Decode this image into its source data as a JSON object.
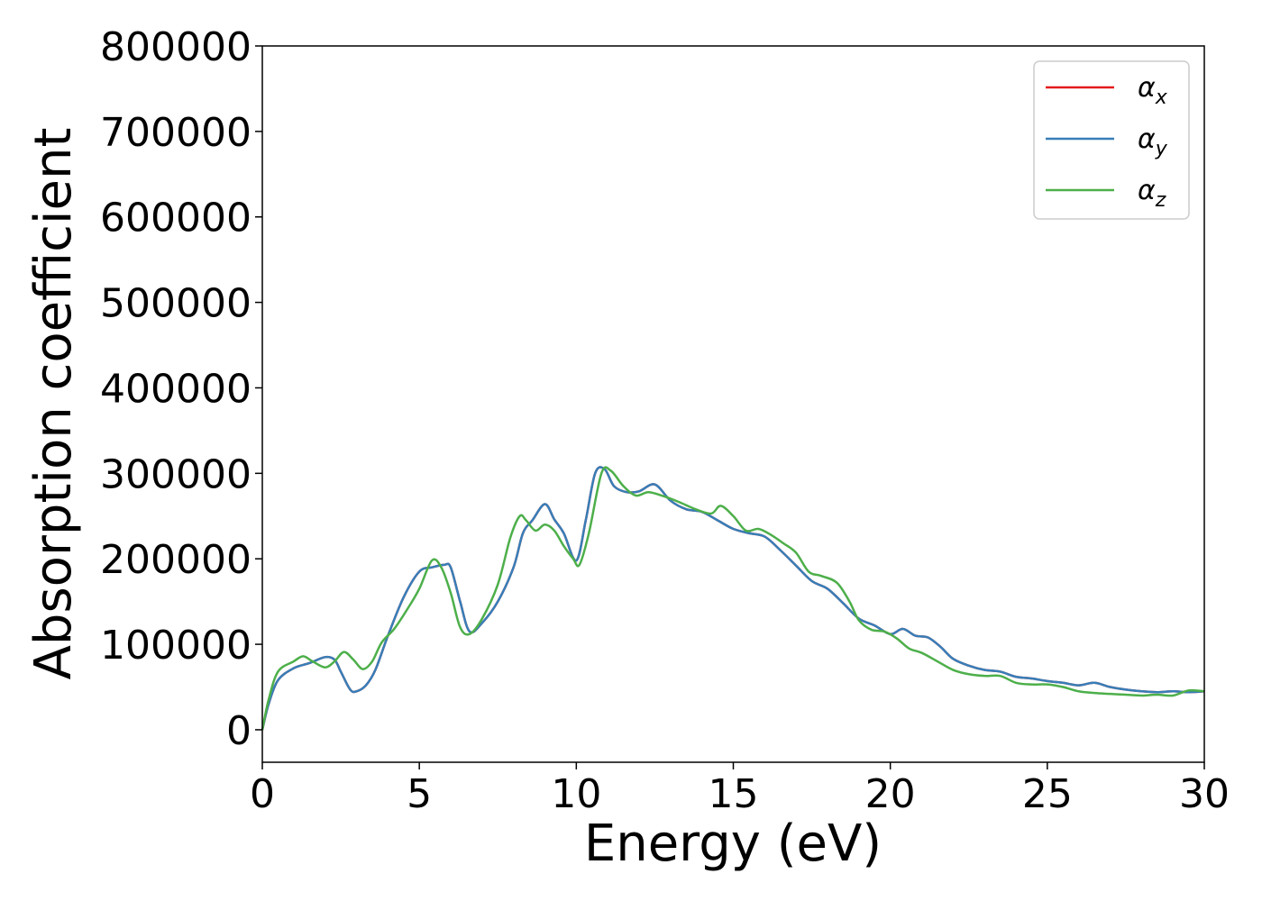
{
  "chart_data": {
    "type": "line",
    "title": "",
    "xlabel": "Energy (eV)",
    "ylabel": "Absorption coefficient",
    "xlim": [
      0,
      30
    ],
    "ylim": [
      -38000,
      800000
    ],
    "xticks": [
      0,
      5,
      10,
      15,
      20,
      25,
      30
    ],
    "yticks": [
      0,
      100000,
      200000,
      300000,
      400000,
      500000,
      600000,
      700000,
      800000
    ],
    "xtick_labels": [
      "0",
      "5",
      "10",
      "15",
      "20",
      "25",
      "30"
    ],
    "ytick_labels": [
      "0",
      "100000",
      "200000",
      "300000",
      "400000",
      "500000",
      "600000",
      "700000",
      "800000"
    ],
    "grid": false,
    "legend_position": "top-right",
    "series": [
      {
        "name": "α",
        "sub": "x",
        "color": "#e41a1c",
        "x": [
          0,
          0.2,
          0.5,
          1.0,
          1.5,
          2.0,
          2.3,
          2.5,
          2.8,
          3.0,
          3.3,
          3.6,
          4.0,
          4.5,
          5.0,
          5.4,
          5.8,
          6.0,
          6.3,
          6.6,
          7.0,
          7.5,
          8.0,
          8.3,
          8.6,
          9.0,
          9.3,
          9.6,
          10.0,
          10.3,
          10.6,
          10.9,
          11.2,
          11.6,
          12.0,
          12.5,
          13.0,
          13.5,
          14.0,
          14.5,
          15.0,
          15.5,
          16.0,
          16.5,
          17.0,
          17.5,
          18.0,
          18.5,
          19.0,
          19.5,
          20.0,
          20.4,
          20.8,
          21.2,
          21.6,
          22.0,
          22.5,
          23.0,
          23.5,
          24.0,
          24.5,
          25.0,
          25.5,
          26.0,
          26.5,
          27.0,
          27.5,
          28.0,
          28.5,
          29.0,
          29.5,
          30.0
        ],
        "y": [
          0,
          30000,
          58000,
          72000,
          78000,
          85000,
          82000,
          68000,
          47000,
          45000,
          52000,
          70000,
          110000,
          155000,
          185000,
          190000,
          193000,
          190000,
          150000,
          115000,
          125000,
          150000,
          190000,
          230000,
          245000,
          264000,
          246000,
          230000,
          198000,
          245000,
          300000,
          305000,
          285000,
          278000,
          279000,
          287000,
          268000,
          258000,
          255000,
          245000,
          235000,
          230000,
          226000,
          210000,
          192000,
          174000,
          165000,
          148000,
          130000,
          122000,
          112000,
          118000,
          110000,
          108000,
          97000,
          83000,
          75000,
          70000,
          68000,
          62000,
          60000,
          57000,
          55000,
          52000,
          55000,
          50000,
          47000,
          45000,
          44000,
          45000,
          44000,
          45000
        ]
      },
      {
        "name": "α",
        "sub": "y",
        "color": "#377eb8",
        "x": [
          0,
          0.2,
          0.5,
          1.0,
          1.5,
          2.0,
          2.3,
          2.5,
          2.8,
          3.0,
          3.3,
          3.6,
          4.0,
          4.5,
          5.0,
          5.4,
          5.8,
          6.0,
          6.3,
          6.6,
          7.0,
          7.5,
          8.0,
          8.3,
          8.6,
          9.0,
          9.3,
          9.6,
          10.0,
          10.3,
          10.6,
          10.9,
          11.2,
          11.6,
          12.0,
          12.5,
          13.0,
          13.5,
          14.0,
          14.5,
          15.0,
          15.5,
          16.0,
          16.5,
          17.0,
          17.5,
          18.0,
          18.5,
          19.0,
          19.5,
          20.0,
          20.4,
          20.8,
          21.2,
          21.6,
          22.0,
          22.5,
          23.0,
          23.5,
          24.0,
          24.5,
          25.0,
          25.5,
          26.0,
          26.5,
          27.0,
          27.5,
          28.0,
          28.5,
          29.0,
          29.5,
          30.0
        ],
        "y": [
          0,
          30000,
          58000,
          72000,
          78000,
          85000,
          82000,
          68000,
          47000,
          45000,
          52000,
          70000,
          110000,
          155000,
          185000,
          190000,
          193000,
          190000,
          150000,
          115000,
          125000,
          150000,
          190000,
          230000,
          245000,
          264000,
          246000,
          230000,
          198000,
          245000,
          300000,
          305000,
          285000,
          278000,
          279000,
          287000,
          268000,
          258000,
          255000,
          245000,
          235000,
          230000,
          226000,
          210000,
          192000,
          174000,
          165000,
          148000,
          130000,
          122000,
          112000,
          118000,
          110000,
          108000,
          97000,
          83000,
          75000,
          70000,
          68000,
          62000,
          60000,
          57000,
          55000,
          52000,
          55000,
          50000,
          47000,
          45000,
          44000,
          45000,
          44000,
          45000
        ]
      },
      {
        "name": "α",
        "sub": "z",
        "color": "#4daf4a",
        "x": [
          0,
          0.2,
          0.5,
          1.0,
          1.3,
          1.6,
          2.0,
          2.3,
          2.6,
          2.9,
          3.2,
          3.5,
          3.8,
          4.2,
          4.6,
          5.0,
          5.4,
          5.7,
          6.0,
          6.3,
          6.6,
          7.0,
          7.5,
          7.9,
          8.2,
          8.4,
          8.7,
          9.0,
          9.3,
          9.6,
          9.9,
          10.1,
          10.4,
          10.8,
          11.1,
          11.5,
          11.9,
          12.3,
          12.8,
          13.3,
          13.8,
          14.3,
          14.6,
          15.0,
          15.4,
          15.8,
          16.2,
          16.6,
          17.0,
          17.4,
          17.8,
          18.3,
          18.7,
          19.0,
          19.4,
          19.8,
          20.2,
          20.6,
          21.0,
          21.5,
          22.0,
          22.5,
          23.0,
          23.5,
          24.0,
          24.5,
          25.0,
          25.5,
          26.0,
          26.5,
          27.0,
          27.5,
          28.0,
          28.5,
          29.0,
          29.5,
          30.0
        ],
        "y": [
          0,
          35000,
          68000,
          80000,
          86000,
          80000,
          73000,
          80000,
          91000,
          82000,
          71000,
          80000,
          102000,
          118000,
          140000,
          165000,
          198000,
          190000,
          160000,
          120000,
          112000,
          130000,
          170000,
          225000,
          250000,
          245000,
          233000,
          240000,
          233000,
          215000,
          200000,
          193000,
          230000,
          300000,
          303000,
          285000,
          274000,
          278000,
          273000,
          266000,
          258000,
          253000,
          262000,
          250000,
          233000,
          235000,
          228000,
          218000,
          207000,
          185000,
          180000,
          172000,
          150000,
          128000,
          117000,
          115000,
          107000,
          95000,
          90000,
          80000,
          70000,
          65000,
          63000,
          63000,
          55000,
          53000,
          53000,
          50000,
          45000,
          43000,
          42000,
          41000,
          40000,
          41000,
          40000,
          46000,
          45000
        ]
      }
    ]
  }
}
